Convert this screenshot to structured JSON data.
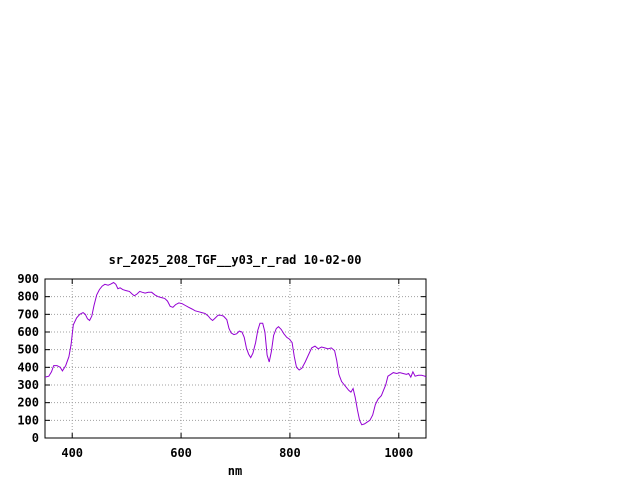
{
  "chart_data": {
    "type": "line",
    "title": "sr_2025_208_TGF__y03_r_rad 10-02-00",
    "xlabel": "nm",
    "ylabel": "",
    "xlim": [
      350,
      1050
    ],
    "ylim": [
      0,
      900
    ],
    "x_ticks": [
      400,
      600,
      800,
      1000
    ],
    "y_ticks": [
      0,
      100,
      200,
      300,
      400,
      500,
      600,
      700,
      800,
      900
    ],
    "grid": true,
    "series": [
      {
        "color": "#9400d3",
        "points": [
          [
            350,
            345
          ],
          [
            357,
            350
          ],
          [
            362,
            375
          ],
          [
            366,
            410
          ],
          [
            372,
            410
          ],
          [
            378,
            400
          ],
          [
            382,
            380
          ],
          [
            388,
            410
          ],
          [
            394,
            460
          ],
          [
            398,
            530
          ],
          [
            402,
            640
          ],
          [
            408,
            680
          ],
          [
            414,
            700
          ],
          [
            420,
            710
          ],
          [
            424,
            700
          ],
          [
            428,
            675
          ],
          [
            432,
            665
          ],
          [
            436,
            690
          ],
          [
            440,
            750
          ],
          [
            445,
            810
          ],
          [
            450,
            840
          ],
          [
            455,
            860
          ],
          [
            460,
            870
          ],
          [
            466,
            865
          ],
          [
            470,
            870
          ],
          [
            476,
            880
          ],
          [
            480,
            870
          ],
          [
            484,
            845
          ],
          [
            488,
            850
          ],
          [
            493,
            840
          ],
          [
            498,
            835
          ],
          [
            505,
            830
          ],
          [
            510,
            815
          ],
          [
            514,
            805
          ],
          [
            519,
            815
          ],
          [
            524,
            830
          ],
          [
            529,
            825
          ],
          [
            534,
            820
          ],
          [
            540,
            825
          ],
          [
            546,
            825
          ],
          [
            552,
            810
          ],
          [
            558,
            800
          ],
          [
            564,
            795
          ],
          [
            570,
            790
          ],
          [
            575,
            775
          ],
          [
            580,
            745
          ],
          [
            585,
            740
          ],
          [
            590,
            755
          ],
          [
            596,
            765
          ],
          [
            602,
            760
          ],
          [
            608,
            750
          ],
          [
            614,
            740
          ],
          [
            620,
            730
          ],
          [
            626,
            720
          ],
          [
            632,
            715
          ],
          [
            638,
            710
          ],
          [
            644,
            705
          ],
          [
            650,
            690
          ],
          [
            654,
            675
          ],
          [
            658,
            665
          ],
          [
            663,
            680
          ],
          [
            668,
            695
          ],
          [
            673,
            695
          ],
          [
            678,
            690
          ],
          [
            684,
            670
          ],
          [
            688,
            620
          ],
          [
            692,
            595
          ],
          [
            697,
            585
          ],
          [
            702,
            590
          ],
          [
            707,
            605
          ],
          [
            712,
            600
          ],
          [
            716,
            570
          ],
          [
            720,
            510
          ],
          [
            724,
            475
          ],
          [
            728,
            455
          ],
          [
            732,
            480
          ],
          [
            737,
            540
          ],
          [
            741,
            610
          ],
          [
            745,
            650
          ],
          [
            750,
            650
          ],
          [
            754,
            600
          ],
          [
            758,
            470
          ],
          [
            762,
            430
          ],
          [
            766,
            490
          ],
          [
            770,
            580
          ],
          [
            775,
            620
          ],
          [
            779,
            630
          ],
          [
            784,
            615
          ],
          [
            789,
            590
          ],
          [
            794,
            570
          ],
          [
            799,
            560
          ],
          [
            804,
            540
          ],
          [
            808,
            460
          ],
          [
            812,
            400
          ],
          [
            817,
            385
          ],
          [
            822,
            395
          ],
          [
            828,
            430
          ],
          [
            834,
            470
          ],
          [
            840,
            510
          ],
          [
            846,
            520
          ],
          [
            852,
            505
          ],
          [
            858,
            515
          ],
          [
            864,
            510
          ],
          [
            870,
            505
          ],
          [
            876,
            510
          ],
          [
            882,
            495
          ],
          [
            886,
            440
          ],
          [
            890,
            360
          ],
          [
            895,
            320
          ],
          [
            900,
            300
          ],
          [
            904,
            285
          ],
          [
            908,
            270
          ],
          [
            912,
            260
          ],
          [
            916,
            280
          ],
          [
            920,
            230
          ],
          [
            924,
            160
          ],
          [
            928,
            100
          ],
          [
            932,
            75
          ],
          [
            937,
            80
          ],
          [
            942,
            90
          ],
          [
            947,
            100
          ],
          [
            952,
            130
          ],
          [
            957,
            190
          ],
          [
            962,
            220
          ],
          [
            968,
            240
          ],
          [
            972,
            270
          ],
          [
            976,
            300
          ],
          [
            980,
            350
          ],
          [
            985,
            360
          ],
          [
            990,
            370
          ],
          [
            996,
            365
          ],
          [
            1002,
            370
          ],
          [
            1008,
            365
          ],
          [
            1014,
            360
          ],
          [
            1018,
            365
          ],
          [
            1022,
            345
          ],
          [
            1026,
            375
          ],
          [
            1030,
            350
          ],
          [
            1036,
            355
          ],
          [
            1042,
            355
          ],
          [
            1048,
            350
          ],
          [
            1050,
            345
          ]
        ]
      }
    ]
  }
}
